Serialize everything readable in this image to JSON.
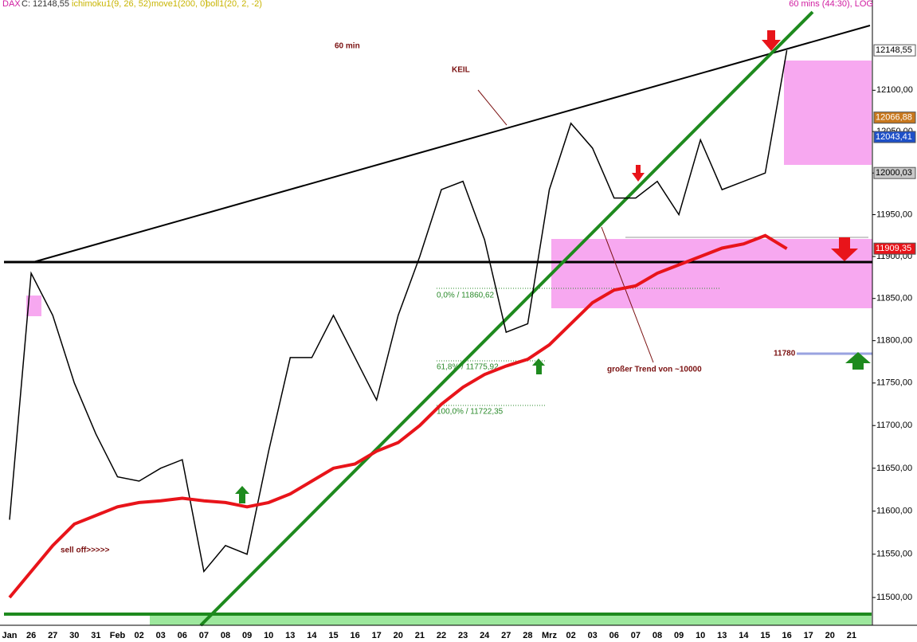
{
  "chart_data": {
    "type": "line",
    "header": [
      "DAX",
      "C: 12148,55",
      "ichimoku1(9, 26, 52)",
      "move1(200, 0)",
      "boll1(20, 2, -2)"
    ],
    "subtitle": "60 mins (44:30), LOG",
    "categories": [
      "Jan",
      "26",
      "27",
      "30",
      "31",
      "Feb",
      "02",
      "03",
      "06",
      "07",
      "08",
      "09",
      "10",
      "13",
      "14",
      "15",
      "16",
      "17",
      "20",
      "21",
      "22",
      "23",
      "24",
      "27",
      "28",
      "Mrz",
      "02",
      "03",
      "06",
      "07",
      "08",
      "09",
      "10",
      "13",
      "14",
      "15",
      "16",
      "17",
      "20",
      "21"
    ],
    "series": [
      {
        "name": "DAX",
        "color": "#000000",
        "values": [
          11590,
          11880,
          11830,
          11750,
          11690,
          11640,
          11635,
          11650,
          11660,
          11530,
          11560,
          11550,
          11670,
          11780,
          11780,
          11830,
          11780,
          11730,
          11830,
          11900,
          11980,
          11990,
          11920,
          11810,
          11820,
          11980,
          12060,
          12030,
          11970,
          11970,
          11990,
          11950,
          12040,
          11980,
          11990,
          12000,
          12148.55,
          null,
          null,
          null
        ]
      },
      {
        "name": "move1(200, 0)",
        "color": "#e8141a",
        "values": [
          11500,
          11530,
          11560,
          11585,
          11595,
          11605,
          11610,
          11612,
          11615,
          11612,
          11610,
          11605,
          11610,
          11620,
          11635,
          11650,
          11655,
          11670,
          11680,
          11700,
          11725,
          11745,
          11760,
          11770,
          11778,
          11795,
          11820,
          11845,
          11860,
          11865,
          11880,
          11890,
          11900,
          11910,
          11915,
          11925,
          11909.35,
          null,
          null,
          null
        ]
      }
    ],
    "log": true,
    "ylim": [
      11468,
      12210
    ],
    "yticks": [
      {
        "value": 11500,
        "label": "11500,00"
      },
      {
        "value": 11550,
        "label": "11550,00"
      },
      {
        "value": 11600,
        "label": "11600,00"
      },
      {
        "value": 11650,
        "label": "11650,00"
      },
      {
        "value": 11700,
        "label": "11700,00"
      },
      {
        "value": 11750,
        "label": "11750,00"
      },
      {
        "value": 11800,
        "label": "11800,00"
      },
      {
        "value": 11850,
        "label": "11850,00"
      },
      {
        "value": 11900,
        "label": "11900,00"
      },
      {
        "value": 11950,
        "label": "11950,00"
      },
      {
        "value": 12000,
        "label": "12000,00"
      },
      {
        "value": 12050,
        "label": "12050,00"
      },
      {
        "value": 12100,
        "label": "12100,00"
      }
    ],
    "price_tags": [
      {
        "value": 12148.55,
        "label": "12148,55",
        "color": "#ffffff"
      },
      {
        "value": 12066.88,
        "label": "12066,88",
        "color": "#c8781e"
      },
      {
        "value": 12043.41,
        "label": "12043,41",
        "color": "#1e50c8"
      },
      {
        "value": 12000.03,
        "label": "12000,03",
        "color": "#c8c8c8"
      },
      {
        "value": 11909.35,
        "label": "11909,35",
        "color": "#e8141a"
      }
    ],
    "annotations": {
      "timeframe": "60 min",
      "wedge": "KEIL",
      "trend": "großer Trend von ~10000",
      "selloff": "sell off>>>>>",
      "fib0": "0,0% / 11860,62",
      "fib618": "61,8% / 11775,92",
      "fib100": "100,0% / 11722,35",
      "level": "11780"
    }
  }
}
